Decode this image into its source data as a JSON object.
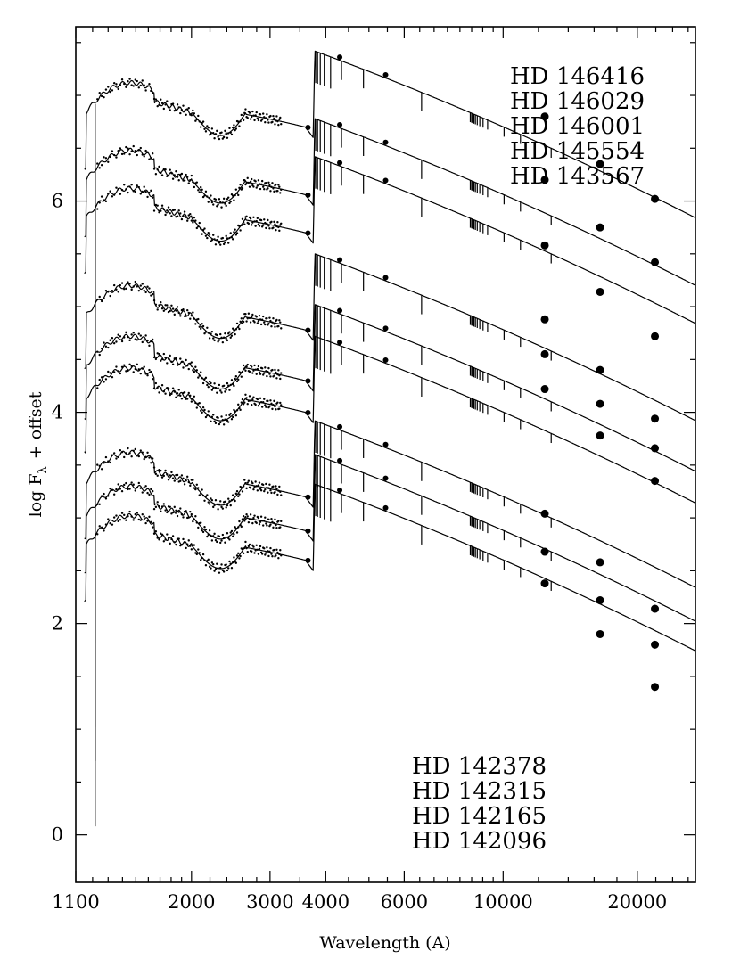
{
  "chart_data": {
    "type": "line",
    "xlabel": "Wavelength (A)",
    "ylabel": "log F",
    "ylabel_sub": "λ",
    "ylabel_suffix": "+ offset",
    "xscale": "log",
    "xlim": [
      1100,
      27000
    ],
    "ylim": [
      -0.45,
      7.65
    ],
    "xticks": [
      {
        "value": 1100,
        "label": "1100"
      },
      {
        "value": 2000,
        "label": "2000"
      },
      {
        "value": 3000,
        "label": "3000"
      },
      {
        "value": 4000,
        "label": "4000"
      },
      {
        "value": 6000,
        "label": "6000"
      },
      {
        "value": 10000,
        "label": "10000"
      },
      {
        "value": 20000,
        "label": "20000"
      }
    ],
    "yticks": [
      {
        "value": 0,
        "label": "0"
      },
      {
        "value": 2,
        "label": "2"
      },
      {
        "value": 4,
        "label": "4"
      },
      {
        "value": 6,
        "label": "6"
      }
    ],
    "legend_top": [
      "HD 146416",
      "HD 146029",
      "HD 146001",
      "HD 145554",
      "HD 143567"
    ],
    "legend_bottom": [
      "HD 142378",
      "HD 142315",
      "HD 142165",
      "HD 142096"
    ],
    "grid": false,
    "series": [
      {
        "level": 7.12,
        "phot": [
          6.8,
          6.35,
          6.02
        ]
      },
      {
        "level": 6.48,
        "phot": [
          6.2,
          5.75,
          5.42
        ]
      },
      {
        "level": 6.12,
        "phot": [
          5.58,
          5.14,
          4.72
        ]
      },
      {
        "level": 5.2,
        "phot": [
          4.88,
          4.4,
          3.94
        ]
      },
      {
        "level": 4.72,
        "phot": [
          4.55,
          4.08,
          3.66
        ]
      },
      {
        "level": 4.42,
        "phot": [
          4.22,
          3.78,
          3.35
        ]
      },
      {
        "level": 3.62,
        "phot": [
          3.04,
          2.58,
          2.14
        ]
      },
      {
        "level": 3.3,
        "phot": [
          2.68,
          2.22,
          1.8
        ]
      },
      {
        "level": 3.02,
        "phot": [
          2.38,
          1.9,
          1.4
        ]
      }
    ]
  }
}
